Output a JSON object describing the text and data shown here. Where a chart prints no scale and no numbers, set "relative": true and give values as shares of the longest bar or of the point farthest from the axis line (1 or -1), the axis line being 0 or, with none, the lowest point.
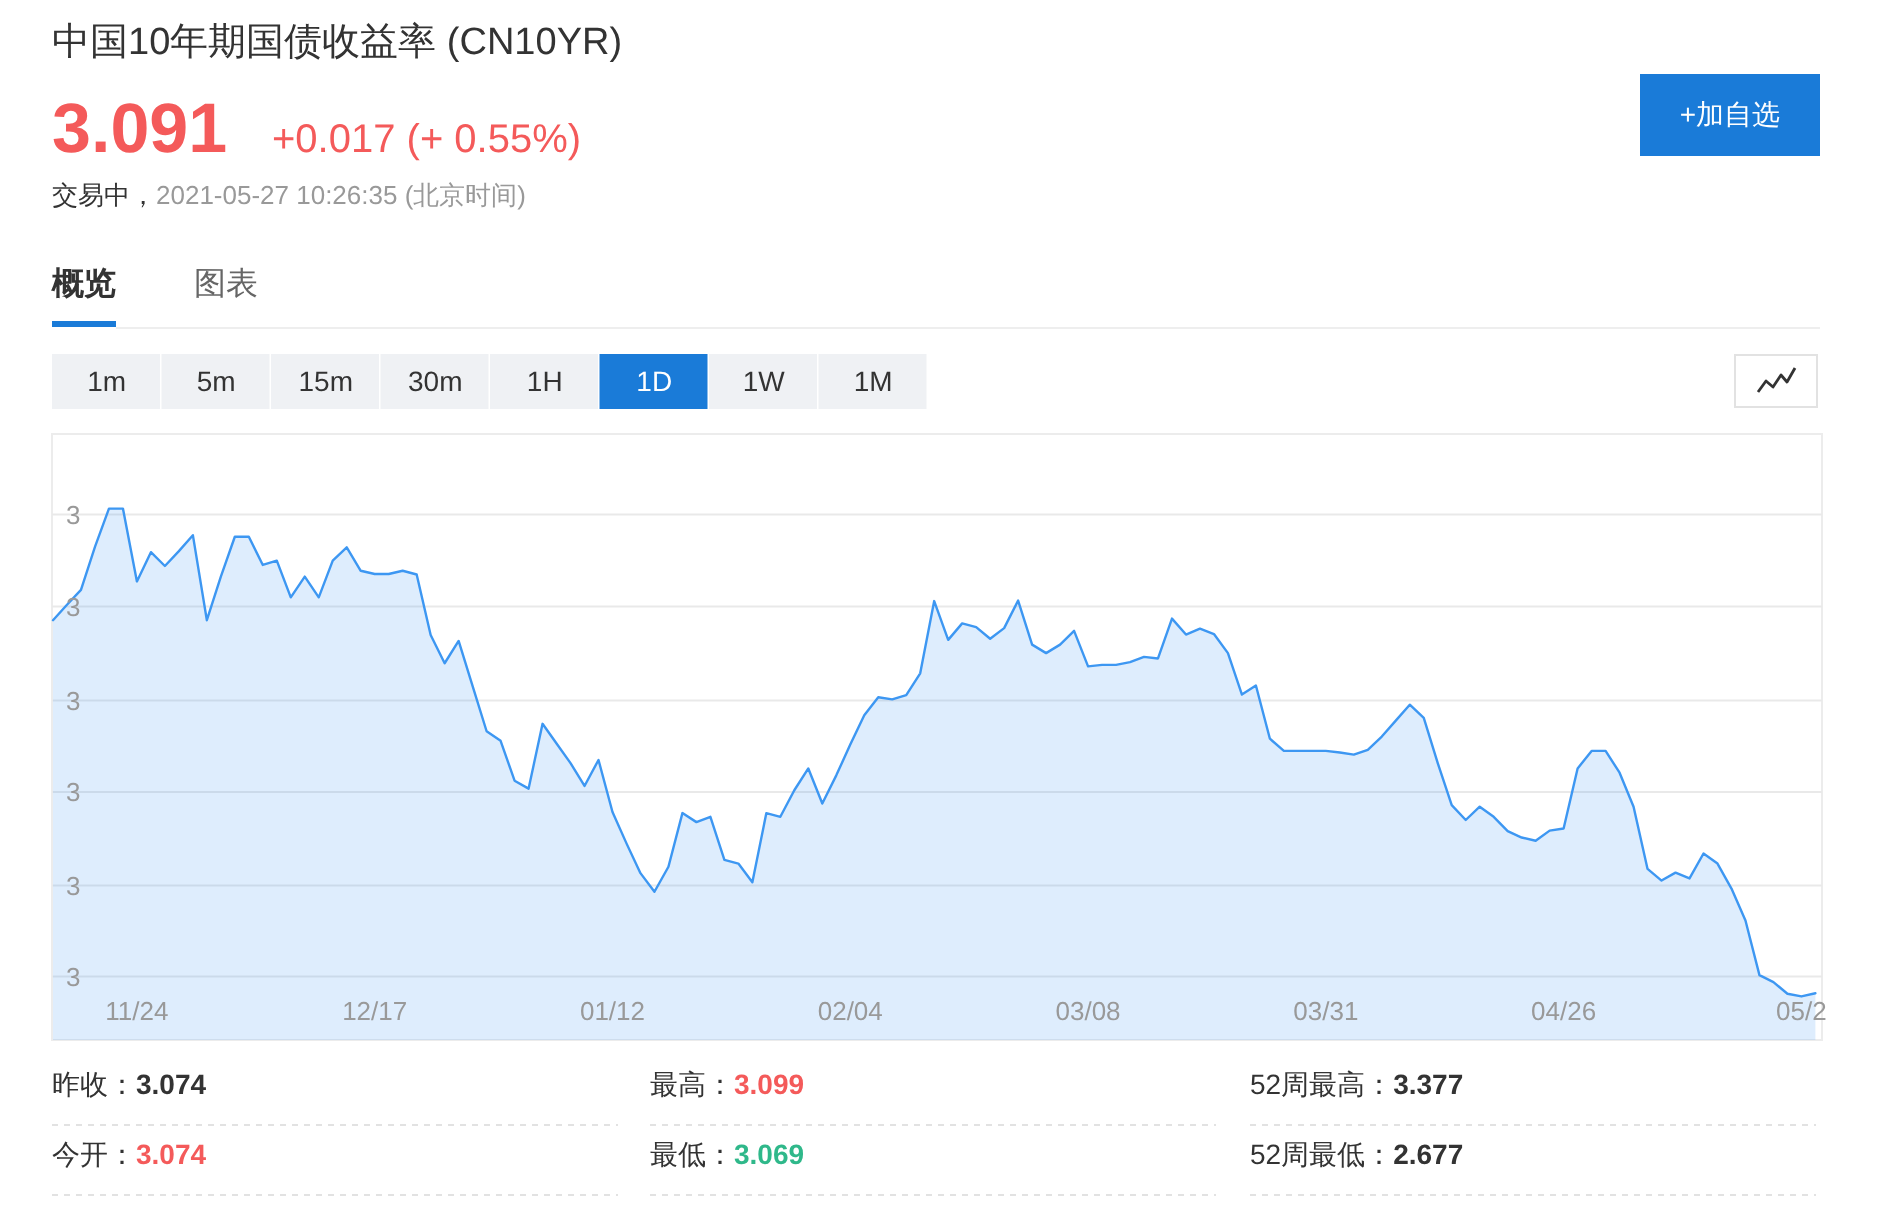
{
  "chart_data": {
    "type": "area",
    "title": "中国10年期国债收益率 (CN10YR)",
    "relative": true,
    "color": "#3d97f2",
    "grid": "y",
    "categories": [
      null,
      null,
      null,
      null,
      null,
      null,
      "11/24",
      null,
      null,
      null,
      null,
      null,
      null,
      null,
      null,
      null,
      null,
      null,
      null,
      null,
      null,
      null,
      null,
      "12/17",
      null,
      null,
      null,
      null,
      null,
      null,
      null,
      null,
      null,
      null,
      null,
      null,
      null,
      null,
      null,
      null,
      "01/12",
      null,
      null,
      null,
      null,
      null,
      null,
      null,
      null,
      null,
      null,
      null,
      null,
      null,
      null,
      null,
      null,
      "02/04",
      null,
      null,
      null,
      null,
      null,
      null,
      null,
      null,
      null,
      null,
      null,
      null,
      null,
      null,
      null,
      null,
      "03/08",
      null,
      null,
      null,
      null,
      null,
      null,
      null,
      null,
      null,
      null,
      null,
      null,
      null,
      null,
      null,
      null,
      "03/31",
      null,
      null,
      null,
      null,
      null,
      null,
      null,
      null,
      null,
      null,
      null,
      null,
      null,
      null,
      null,
      null,
      "04/26",
      null,
      null,
      null,
      null,
      null,
      null,
      null,
      null,
      null,
      null,
      null,
      null,
      null,
      null,
      null,
      null,
      "05/2",
      null
    ],
    "values": [
      0.79,
      0.819,
      0.847,
      0.928,
      1,
      1,
      0.863,
      0.918,
      0.892,
      0.92,
      0.95,
      0.79,
      0.872,
      0.947,
      0.947,
      0.894,
      0.902,
      0.833,
      0.872,
      0.833,
      0.902,
      0.927,
      0.883,
      0.877,
      0.877,
      0.883,
      0.876,
      0.762,
      0.709,
      0.751,
      0.666,
      0.581,
      0.563,
      0.488,
      0.473,
      0.595,
      0.558,
      0.521,
      0.478,
      0.527,
      0.429,
      0.37,
      0.314,
      0.279,
      0.326,
      0.427,
      0.41,
      0.42,
      0.339,
      0.332,
      0.297,
      0.427,
      0.42,
      0.47,
      0.511,
      0.445,
      0.498,
      0.556,
      0.611,
      0.645,
      0.641,
      0.649,
      0.69,
      0.826,
      0.753,
      0.784,
      0.777,
      0.755,
      0.775,
      0.827,
      0.744,
      0.728,
      0.744,
      0.77,
      0.703,
      0.706,
      0.706,
      0.711,
      0.721,
      0.718,
      0.793,
      0.763,
      0.774,
      0.764,
      0.728,
      0.65,
      0.667,
      0.567,
      0.544,
      0.544,
      0.544,
      0.544,
      0.541,
      0.537,
      0.546,
      0.571,
      0.601,
      0.631,
      0.606,
      0.521,
      0.442,
      0.414,
      0.439,
      0.42,
      0.393,
      0.381,
      0.375,
      0.394,
      0.398,
      0.511,
      0.544,
      0.544,
      0.503,
      0.439,
      0.322,
      0.3,
      0.315,
      0.304,
      0.351,
      0.332,
      0.285,
      0.225,
      0.122,
      0.109,
      0.087,
      0.082,
      0.088
    ],
    "annotations": [
      "3.091",
      "+0.017 (+ 0.55%)",
      "交易中，",
      "2021-05-27 10:26:35 (北京时间)",
      "+加自选",
      "概览",
      "图表",
      "1m",
      "5m",
      "15m",
      "30m",
      "1H",
      "1D",
      "1W",
      "1M",
      "昨收：",
      "3.074",
      "最高：",
      "3.099",
      "52周最高：",
      "3.377",
      "今开：",
      "3.074",
      "最低：",
      "3.069",
      "52周最低：",
      "2.677",
      "3",
      "3",
      "3",
      "3",
      "3",
      "3"
    ]
  }
}
